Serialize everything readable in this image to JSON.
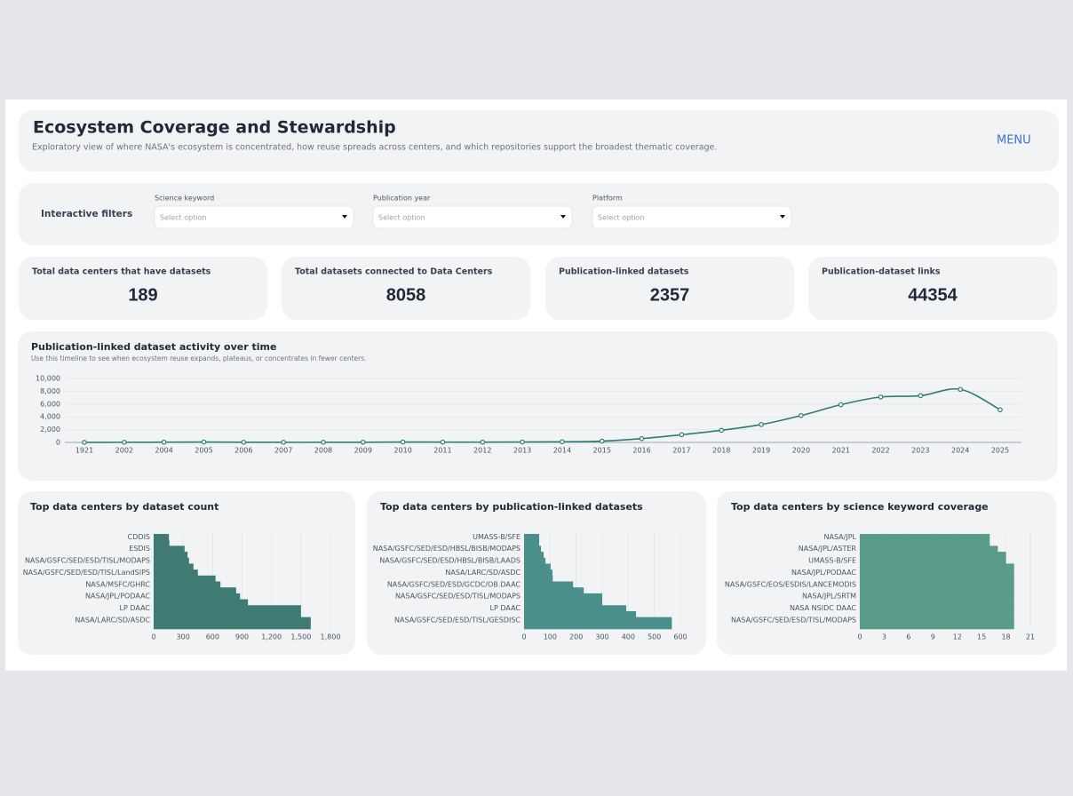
{
  "header": {
    "title": "Ecosystem Coverage and Stewardship",
    "subtitle": "Exploratory view of where NASA's ecosystem is concentrated, how reuse spreads across centers, and which repositories support the broadest thematic coverage.",
    "menu": "MENU"
  },
  "filters": {
    "title": "Interactive filters",
    "items": [
      {
        "label": "Science keyword",
        "placeholder": "Select option"
      },
      {
        "label": "Publication year",
        "placeholder": "Select option"
      },
      {
        "label": "Platform",
        "placeholder": "Select option"
      }
    ]
  },
  "kpis": [
    {
      "label": "Total data centers that have datasets",
      "value": 189
    },
    {
      "label": "Total datasets connected to Data Centers",
      "value": 8058
    },
    {
      "label": "Publication-linked datasets",
      "value": 2357
    },
    {
      "label": "Publication-dataset links",
      "value": 44354
    }
  ],
  "chart_data": [
    {
      "type": "line",
      "title": "Publication-linked dataset activity over time",
      "subtitle": "Use this timeline to see when ecosystem reuse expands, plateaus, or concentrates in fewer centers.",
      "categories": [
        "1921",
        "2002",
        "2004",
        "2005",
        "2006",
        "2007",
        "2008",
        "2009",
        "2010",
        "2011",
        "2012",
        "2013",
        "2014",
        "2015",
        "2016",
        "2017",
        "2018",
        "2019",
        "2020",
        "2021",
        "2022",
        "2023",
        "2024",
        "2025"
      ],
      "values": [
        10,
        20,
        40,
        60,
        30,
        20,
        20,
        30,
        60,
        50,
        40,
        70,
        100,
        200,
        600,
        1200,
        1900,
        2800,
        4200,
        5900,
        7100,
        7300,
        8300,
        5100
      ],
      "color": "#2e7d72",
      "ylim": [
        0,
        10000
      ],
      "yticks": [
        0,
        {
          "value": 2000,
          "label": "2,000"
        },
        {
          "value": 4000,
          "label": "4,000"
        },
        {
          "value": 6000,
          "label": "6,000"
        },
        {
          "value": 8000,
          "label": "8,000"
        },
        {
          "value": 10000,
          "label": "10,000"
        }
      ],
      "grid": true
    },
    {
      "type": "bar",
      "orientation": "horizontal",
      "title": "Top data centers by dataset count",
      "categories": [
        "CDDIS",
        null,
        "ESDIS",
        null,
        "NASA/GSFC/SED/ESD/TISL/MODAPS",
        null,
        "NASA/GSFC/SED/ESD/TISL/LandSIPS",
        null,
        "NASA/MSFC/GHRC",
        null,
        "NASA/JPL/PODAAC",
        null,
        "LP DAAC",
        null,
        "NASA/LARC/SD/ASDC",
        null
      ],
      "values": [
        155,
        160,
        315,
        345,
        360,
        405,
        450,
        630,
        680,
        840,
        880,
        960,
        1500,
        1500,
        1600,
        1600
      ],
      "color": "#3f7b72",
      "xlim": [
        0,
        1800
      ],
      "xticks": [
        0,
        300,
        600,
        900,
        {
          "value": 1200,
          "label": "1,200"
        },
        {
          "value": 1500,
          "label": "1,500"
        },
        {
          "value": 1800,
          "label": "1,800"
        }
      ],
      "grid": true
    },
    {
      "type": "bar",
      "orientation": "horizontal",
      "title": "Top data centers by publication-linked datasets",
      "categories": [
        "UMASS-B/SFE",
        null,
        "NASA/GSFC/SED/ESD/HBSL/BISB/MODAPS",
        null,
        "NASA/GSFC/SED/ESD/HBSL/BISB/LAADS",
        null,
        "NASA/LARC/SD/ASDC",
        null,
        "NASA/GSFC/SED/ESD/GCDC/OB.DAAC",
        null,
        "NASA/GSFC/SED/ESD/TISL/MODAPS",
        null,
        "LP DAAC",
        null,
        "NASA/GSFC/SED/ESD/TISL/GESDISC",
        null
      ],
      "values": [
        58,
        58,
        65,
        75,
        82,
        102,
        109,
        110,
        188,
        229,
        300,
        300,
        392,
        430,
        567,
        567
      ],
      "color": "#4a8f8b",
      "xlim": [
        0,
        600
      ],
      "xticks": [
        0,
        100,
        200,
        300,
        400,
        500,
        600
      ],
      "grid": true
    },
    {
      "type": "bar",
      "orientation": "horizontal",
      "title": "Top data centers by science keyword coverage",
      "categories": [
        "NASA/JPL",
        null,
        "NASA/JPL/ASTER",
        null,
        "UMASS-B/SFE",
        null,
        "NASA/JPL/PODAAC",
        null,
        "NASA/GSFC/EOS/ESDIS/LANCEMODIS",
        null,
        "NASA/JPL/SRTM",
        null,
        "NASA NSIDC DAAC",
        null,
        "NASA/GSFC/SED/ESD/TISL/MODAPS",
        null
      ],
      "values": [
        16,
        16,
        17,
        18,
        18,
        19,
        19,
        19,
        19,
        19,
        19,
        19,
        19,
        19,
        19,
        19
      ],
      "color": "#5a9c8a",
      "xlim": [
        0,
        21
      ],
      "xticks": [
        0,
        3,
        6,
        9,
        12,
        15,
        18,
        21
      ],
      "grid": true
    }
  ]
}
